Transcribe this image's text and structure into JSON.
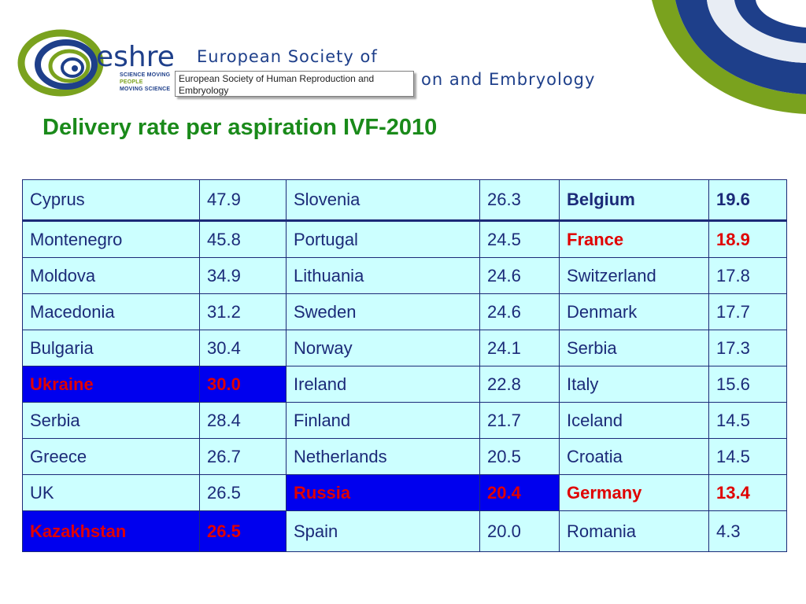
{
  "header": {
    "logo_word": "eshre",
    "logo_tag_lines": [
      "SCIENCE MOVING",
      "PEOPLE",
      "MOVING SCIENCE"
    ],
    "org_line1": "European Society of",
    "org_line2": "on and Embryology",
    "tooltip": "European Society of Human Reproduction and Embryology",
    "colors": {
      "navy": "#1e3f8a",
      "green": "#7aa21e"
    }
  },
  "slide": {
    "title": "Delivery rate per aspiration IVF-2010"
  },
  "table": {
    "rows": [
      [
        {
          "country": "Cyprus",
          "rate": "47.9"
        },
        {
          "country": "Slovenia",
          "rate": "26.3"
        },
        {
          "country": "Belgium",
          "rate": "19.6",
          "style": "bold"
        }
      ],
      [
        {
          "country": "Montenegro",
          "rate": "45.8"
        },
        {
          "country": "Portugal",
          "rate": "24.5"
        },
        {
          "country": "France",
          "rate": "18.9",
          "style": "red"
        }
      ],
      [
        {
          "country": "Moldova",
          "rate": "34.9"
        },
        {
          "country": "Lithuania",
          "rate": "24.6"
        },
        {
          "country": "Switzerland",
          "rate": "17.8"
        }
      ],
      [
        {
          "country": "Macedonia",
          "rate": "31.2"
        },
        {
          "country": "Sweden",
          "rate": "24.6"
        },
        {
          "country": "Denmark",
          "rate": "17.7"
        }
      ],
      [
        {
          "country": "Bulgaria",
          "rate": "30.4"
        },
        {
          "country": "Norway",
          "rate": "24.1"
        },
        {
          "country": "Serbia",
          "rate": "17.3"
        }
      ],
      [
        {
          "country": "Ukraine",
          "rate": "30.0",
          "style": "highlight"
        },
        {
          "country": "Ireland",
          "rate": "22.8"
        },
        {
          "country": "Italy",
          "rate": "15.6"
        }
      ],
      [
        {
          "country": "Serbia",
          "rate": "28.4"
        },
        {
          "country": "Finland",
          "rate": "21.7"
        },
        {
          "country": "Iceland",
          "rate": "14.5"
        }
      ],
      [
        {
          "country": "Greece",
          "rate": "26.7"
        },
        {
          "country": "Netherlands",
          "rate": "20.5"
        },
        {
          "country": "Croatia",
          "rate": "14.5"
        }
      ],
      [
        {
          "country": "UK",
          "rate": "26.5"
        },
        {
          "country": "Russia",
          "rate": "20.4",
          "style": "highlight"
        },
        {
          "country": "Germany",
          "rate": "13.4",
          "style": "red"
        }
      ],
      [
        {
          "country": "Kazakhstan",
          "rate": "26.5",
          "style": "highlight"
        },
        {
          "country": "Spain",
          "rate": "20.0"
        },
        {
          "country": "Romania",
          "rate": "4.3"
        }
      ]
    ],
    "colors": {
      "cell_bg": "#ccffff",
      "border": "#1b2a78",
      "text": "#1b2a78",
      "highlight_bg": "#0000ee",
      "emphasis_red": "#e00000"
    }
  }
}
